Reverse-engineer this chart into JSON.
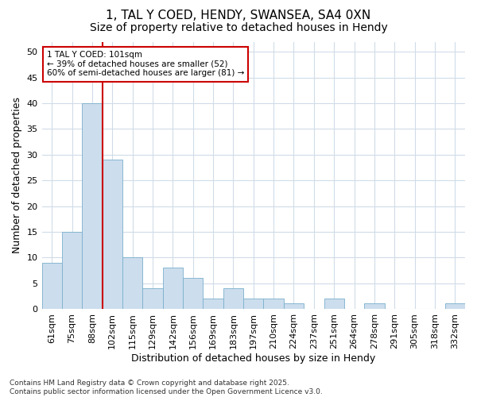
{
  "title_line1": "1, TAL Y COED, HENDY, SWANSEA, SA4 0XN",
  "title_line2": "Size of property relative to detached houses in Hendy",
  "xlabel": "Distribution of detached houses by size in Hendy",
  "ylabel": "Number of detached properties",
  "footnote": "Contains HM Land Registry data © Crown copyright and database right 2025.\nContains public sector information licensed under the Open Government Licence v3.0.",
  "bin_labels": [
    "61sqm",
    "75sqm",
    "88sqm",
    "102sqm",
    "115sqm",
    "129sqm",
    "142sqm",
    "156sqm",
    "169sqm",
    "183sqm",
    "197sqm",
    "210sqm",
    "224sqm",
    "237sqm",
    "251sqm",
    "264sqm",
    "278sqm",
    "291sqm",
    "305sqm",
    "318sqm",
    "332sqm"
  ],
  "bar_values": [
    9,
    15,
    40,
    29,
    10,
    4,
    8,
    6,
    2,
    4,
    2,
    2,
    1,
    0,
    2,
    0,
    1,
    0,
    0,
    0,
    1
  ],
  "bar_color": "#ccdded",
  "bar_edge_color": "#7ab0cc",
  "vline_x": 2.5,
  "vline_color": "#cc0000",
  "annotation_text": "1 TAL Y COED: 101sqm\n← 39% of detached houses are smaller (52)\n60% of semi-detached houses are larger (81) →",
  "annotation_box_color": "#ffffff",
  "annotation_box_edge": "#cc0000",
  "ylim": [
    0,
    52
  ],
  "yticks": [
    0,
    5,
    10,
    15,
    20,
    25,
    30,
    35,
    40,
    45,
    50
  ],
  "bg_color": "#ffffff",
  "plot_bg_color": "#ffffff",
  "grid_color": "#d0dce8",
  "title_fontsize": 11,
  "subtitle_fontsize": 10,
  "label_fontsize": 9,
  "tick_fontsize": 8,
  "footnote_fontsize": 6.5
}
